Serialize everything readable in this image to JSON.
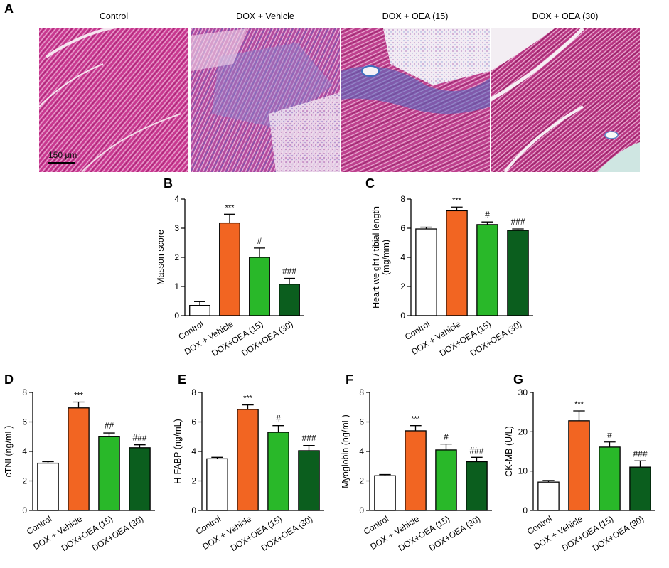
{
  "panel_labels": {
    "a": "A",
    "b": "B",
    "c": "C",
    "d": "D",
    "e": "E",
    "f": "F",
    "g": "G"
  },
  "histology": {
    "titles": [
      "Control",
      "DOX + Vehicle",
      "DOX + OEA (15)",
      "DOX + OEA (30)"
    ],
    "scale_bar": "150 μm"
  },
  "colors": {
    "control": "#ffffff",
    "vehicle": "#f26522",
    "oea15": "#29b829",
    "oea30": "#0b5e1e"
  },
  "chart_data": [
    {
      "id": "B",
      "type": "bar",
      "ylabel": "Masson score",
      "ylim": [
        0,
        4
      ],
      "yticks": [
        0,
        1,
        2,
        3,
        4
      ],
      "categories": [
        "Control",
        "DOX + Vehicle",
        "DOX+OEA (15)",
        "DOX+OEA (30)"
      ],
      "values": [
        0.35,
        3.18,
        2.0,
        1.08
      ],
      "errors": [
        0.13,
        0.3,
        0.32,
        0.2
      ],
      "annotations": [
        "",
        "***",
        "#",
        "###"
      ]
    },
    {
      "id": "C",
      "type": "bar",
      "ylabel": "Heart weight / tibial length\n(mg/mm)",
      "ylim": [
        0,
        8
      ],
      "yticks": [
        0,
        2,
        4,
        6,
        8
      ],
      "categories": [
        "Control",
        "DOX + Vehicle",
        "DOX+OEA (15)",
        "DOX+OEA (30)"
      ],
      "values": [
        5.95,
        7.2,
        6.25,
        5.85
      ],
      "errors": [
        0.12,
        0.25,
        0.18,
        0.1
      ],
      "annotations": [
        "",
        "***",
        "#",
        "###"
      ]
    },
    {
      "id": "D",
      "type": "bar",
      "ylabel": "cTNI (ng/mL)",
      "ylim": [
        0,
        8
      ],
      "yticks": [
        0,
        2,
        4,
        6,
        8
      ],
      "categories": [
        "Control",
        "DOX + Vehicle",
        "DOX+OEA (15)",
        "DOX+OEA (30)"
      ],
      "values": [
        3.2,
        6.95,
        5.0,
        4.25
      ],
      "errors": [
        0.1,
        0.4,
        0.25,
        0.2
      ],
      "annotations": [
        "",
        "***",
        "##",
        "###"
      ]
    },
    {
      "id": "E",
      "type": "bar",
      "ylabel": "H-FABP (ng/mL)",
      "ylim": [
        0,
        8
      ],
      "yticks": [
        0,
        2,
        4,
        6,
        8
      ],
      "categories": [
        "Control",
        "DOX + Vehicle",
        "DOX+OEA (15)",
        "DOX+OEA (30)"
      ],
      "values": [
        3.5,
        6.85,
        5.3,
        4.05
      ],
      "errors": [
        0.1,
        0.3,
        0.45,
        0.35
      ],
      "annotations": [
        "",
        "***",
        "#",
        "###"
      ]
    },
    {
      "id": "F",
      "type": "bar",
      "ylabel": "Myoglobin (ng/mL)",
      "ylim": [
        0,
        8
      ],
      "yticks": [
        0,
        2,
        4,
        6,
        8
      ],
      "categories": [
        "Control",
        "DOX + Vehicle",
        "DOX+OEA (15)",
        "DOX+OEA (30)"
      ],
      "values": [
        2.35,
        5.4,
        4.1,
        3.3
      ],
      "errors": [
        0.08,
        0.35,
        0.4,
        0.3
      ],
      "annotations": [
        "",
        "***",
        "#",
        "###"
      ]
    },
    {
      "id": "G",
      "type": "bar",
      "ylabel": "CK-MB (U/L)",
      "ylim": [
        0,
        30
      ],
      "yticks": [
        0,
        10,
        20,
        30
      ],
      "categories": [
        "Control",
        "DOX + Vehicle",
        "DOX+OEA (15)",
        "DOX+OEA (30)"
      ],
      "values": [
        7.2,
        22.8,
        16.1,
        11.0
      ],
      "errors": [
        0.4,
        2.5,
        1.3,
        1.6
      ],
      "annotations": [
        "",
        "***",
        "#",
        "###"
      ]
    }
  ]
}
